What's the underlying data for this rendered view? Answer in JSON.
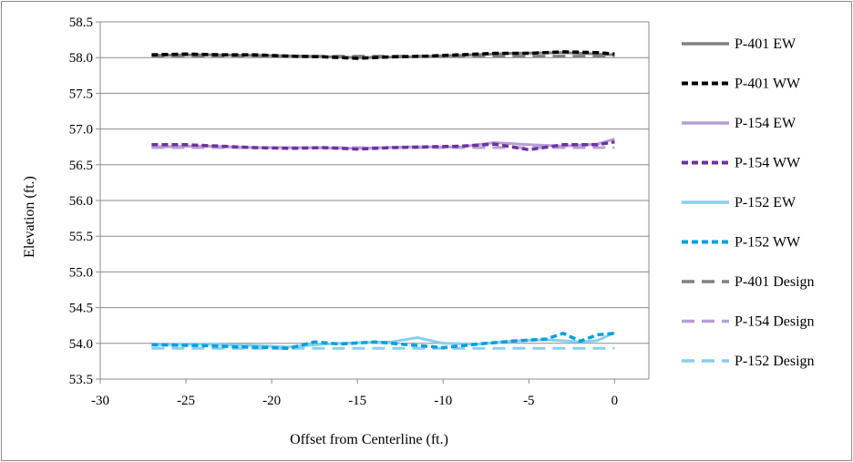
{
  "chart_data": {
    "type": "line",
    "title": "",
    "xlabel": "Offset from Centerline (ft.)",
    "ylabel": "Elevation (ft.)",
    "xlim": [
      -30,
      2
    ],
    "ylim": [
      53.5,
      58.5
    ],
    "x_ticks": [
      -30,
      -25,
      -20,
      -15,
      -10,
      -5,
      0
    ],
    "x_tick_labels": [
      "-30",
      "-25",
      "-20",
      "-15",
      "-10",
      "-5",
      "0"
    ],
    "y_ticks": [
      53.5,
      54.0,
      54.5,
      55.0,
      55.5,
      56.0,
      56.5,
      57.0,
      57.5,
      58.0,
      58.5
    ],
    "y_tick_labels": [
      "53.5",
      "54.0",
      "54.5",
      "55.0",
      "55.5",
      "56.0",
      "56.5",
      "57.0",
      "57.5",
      "58.0",
      "58.5"
    ],
    "grid": "horizontal",
    "legend_position": "right",
    "series": [
      {
        "name": "P-401 EW",
        "color": "#808080",
        "dash": "solid",
        "x": [
          -27,
          -24,
          -21,
          -18,
          -15,
          -12,
          -9,
          -6,
          -3,
          -1,
          0
        ],
        "y": [
          58.03,
          58.04,
          58.03,
          58.02,
          58.0,
          58.01,
          58.03,
          58.06,
          58.07,
          58.05,
          58.04
        ]
      },
      {
        "name": "P-401 WW",
        "color": "#000000",
        "dash": "dashed",
        "x": [
          -27,
          -25,
          -23,
          -21,
          -19,
          -17,
          -15,
          -13,
          -11,
          -9,
          -7,
          -5,
          -3,
          -1,
          0
        ],
        "y": [
          58.04,
          58.05,
          58.04,
          58.04,
          58.02,
          58.01,
          57.99,
          58.01,
          58.02,
          58.04,
          58.06,
          58.06,
          58.08,
          58.07,
          58.05
        ]
      },
      {
        "name": "P-154 EW",
        "color": "#b79fd6",
        "dash": "solid",
        "x": [
          -27,
          -24,
          -21,
          -18,
          -15,
          -12,
          -9,
          -7,
          -5,
          -3,
          -1,
          0
        ],
        "y": [
          56.75,
          56.76,
          56.74,
          56.74,
          56.73,
          56.75,
          56.75,
          56.81,
          56.78,
          56.76,
          56.79,
          56.86
        ]
      },
      {
        "name": "P-154 WW",
        "color": "#7030a0",
        "dash": "dashed",
        "x": [
          -27,
          -25,
          -23,
          -21,
          -19,
          -17,
          -15,
          -13,
          -11,
          -9,
          -7,
          -5,
          -3,
          -1,
          0
        ],
        "y": [
          56.78,
          56.78,
          56.76,
          56.74,
          56.73,
          56.74,
          56.72,
          56.74,
          56.75,
          56.76,
          56.79,
          56.71,
          56.78,
          56.78,
          56.82
        ]
      },
      {
        "name": "P-152 EW",
        "color": "#87cfee",
        "dash": "solid",
        "x": [
          -27,
          -24,
          -21,
          -19,
          -17,
          -15,
          -13,
          -11.5,
          -10,
          -8,
          -6,
          -4,
          -2,
          -1,
          0
        ],
        "y": [
          53.98,
          53.99,
          53.97,
          53.95,
          53.99,
          54.01,
          54.02,
          54.08,
          54.0,
          53.99,
          54.03,
          54.05,
          54.02,
          54.04,
          54.15
        ]
      },
      {
        "name": "P-152 WW",
        "color": "#00a0e0",
        "dash": "dashed",
        "x": [
          -27,
          -24,
          -22,
          -20,
          -19,
          -17.5,
          -16,
          -14,
          -12,
          -10,
          -8,
          -6,
          -4,
          -3,
          -2,
          -1,
          0
        ],
        "y": [
          53.98,
          53.97,
          53.95,
          53.94,
          53.93,
          54.02,
          53.99,
          54.02,
          53.98,
          53.94,
          53.99,
          54.03,
          54.06,
          54.14,
          54.03,
          54.12,
          54.14
        ]
      },
      {
        "name": "P-401 Design",
        "color": "#808080",
        "dash": "longdash",
        "x": [
          -27,
          0
        ],
        "y": [
          58.02,
          58.02
        ]
      },
      {
        "name": "P-154 Design",
        "color": "#b79fd6",
        "dash": "longdash",
        "x": [
          -27,
          0
        ],
        "y": [
          56.74,
          56.74
        ]
      },
      {
        "name": "P-152 Design",
        "color": "#87cfee",
        "dash": "longdash",
        "x": [
          -27,
          0
        ],
        "y": [
          53.93,
          53.93
        ]
      }
    ]
  }
}
